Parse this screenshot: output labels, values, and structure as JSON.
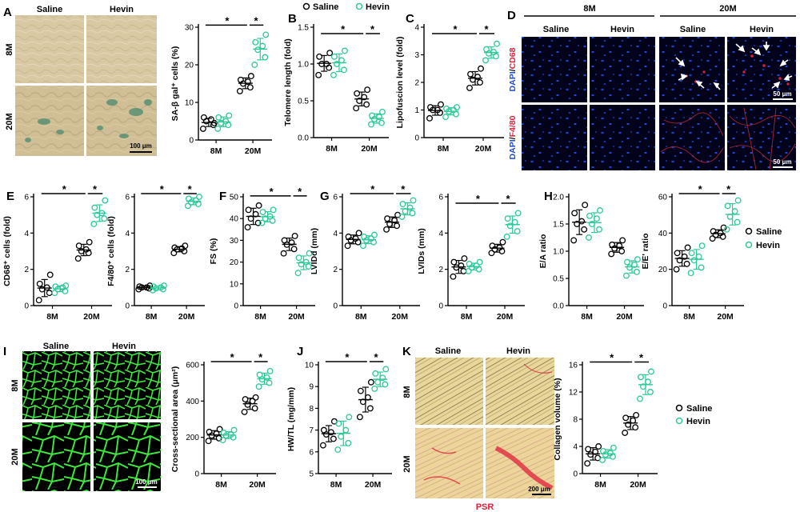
{
  "colors": {
    "saline": "#000000",
    "hevin": "#2cc99a",
    "dapi": "#1a4bd6",
    "cd68": "#e0203a",
    "psr": "#e0203a",
    "muscle": "#33dd33"
  },
  "groups": [
    "Saline",
    "Hevin"
  ],
  "ages": [
    "8M",
    "20M"
  ],
  "panel_A": {
    "letter": "A",
    "col_saline": "Saline",
    "col_hevin": "Hevin",
    "row_8m": "8M",
    "row_20m": "20M",
    "scale_bar": "100 μm"
  },
  "panel_D": {
    "letter": "D",
    "age_8m": "8M",
    "age_20m": "20M",
    "col_saline_8m": "Saline",
    "col_hevin_8m": "Hevin",
    "col_saline_20m": "Saline",
    "col_hevin_20m": "Hevin",
    "row1_label_dapi": "DAPI",
    "row1_label_sep": "/",
    "row1_label_marker": "CD68",
    "row2_label_dapi": "DAPI",
    "row2_label_sep": "/",
    "row2_label_marker": "F4/80",
    "scale_bar_1": "50 μm",
    "scale_bar_2": "50 μm"
  },
  "panel_I": {
    "letter": "I",
    "col_saline": "Saline",
    "col_hevin": "Hevin",
    "row_8m": "8M",
    "row_20m": "20M",
    "scale_bar": "100 μm"
  },
  "panel_K": {
    "letter": "K",
    "col_saline": "Saline",
    "col_hevin": "Hevin",
    "row_8m": "8M",
    "row_20m": "20M",
    "scale_bar": "200 μm",
    "stain": "PSR"
  },
  "legends": {
    "top": {
      "saline": "Saline",
      "hevin": "Hevin"
    },
    "H": {
      "saline": "Saline",
      "hevin": "Hevin"
    },
    "K": {
      "saline": "Saline",
      "hevin": "Hevin"
    }
  },
  "significance_marker": "*",
  "chart_data": [
    {
      "id": "A_sa_bgal",
      "panel": "A",
      "type": "scatter",
      "ylabel": "SA-β gal⁺ cells (%)",
      "ylim": [
        0,
        30
      ],
      "yticks": [
        0,
        10,
        20,
        30
      ],
      "categories": [
        "8M",
        "20M"
      ],
      "series": [
        {
          "name": "Saline",
          "values": [
            [
              3,
              4,
              5,
              5.5,
              6,
              4.5
            ],
            [
              13,
              14,
              15,
              15.5,
              16,
              17
            ]
          ]
        },
        {
          "name": "Hevin",
          "values": [
            [
              3,
              4,
              4.5,
              5,
              6,
              6.5
            ],
            [
              20,
              22,
              24,
              25,
              26,
              28
            ]
          ]
        }
      ],
      "significance": [
        "8M-Saline vs 20M-Saline",
        "20M-Saline vs 20M-Hevin"
      ]
    },
    {
      "id": "B_telomere",
      "panel": "B",
      "letter": "B",
      "type": "scatter",
      "ylabel": "Telomere length (fold)",
      "ylim": [
        0,
        1.5
      ],
      "yticks": [
        0.0,
        0.5,
        1.0,
        1.5
      ],
      "categories": [
        "8M",
        "20M"
      ],
      "series": [
        {
          "name": "Saline",
          "values": [
            [
              0.85,
              0.95,
              1.0,
              1.0,
              1.1,
              1.15
            ],
            [
              0.4,
              0.45,
              0.5,
              0.55,
              0.6,
              0.65
            ]
          ]
        },
        {
          "name": "Hevin",
          "values": [
            [
              0.85,
              0.92,
              1.0,
              1.05,
              1.1,
              1.18
            ],
            [
              0.18,
              0.2,
              0.25,
              0.28,
              0.3,
              0.35
            ]
          ]
        }
      ],
      "significance": [
        "8M-Saline vs 20M-Saline",
        "20M-Saline vs 20M-Hevin"
      ]
    },
    {
      "id": "C_lipofuscin",
      "panel": "C",
      "letter": "C",
      "type": "scatter",
      "ylabel": "Lipofuscion level (fold)",
      "ylim": [
        0,
        4
      ],
      "yticks": [
        0,
        1,
        2,
        3,
        4
      ],
      "categories": [
        "8M",
        "20M"
      ],
      "series": [
        {
          "name": "Saline",
          "values": [
            [
              0.7,
              0.9,
              1.0,
              1.0,
              1.1,
              1.2
            ],
            [
              1.8,
              2.0,
              2.1,
              2.2,
              2.3,
              2.5
            ]
          ]
        },
        {
          "name": "Hevin",
          "values": [
            [
              0.75,
              0.85,
              0.95,
              1.0,
              1.05,
              1.1
            ],
            [
              2.8,
              2.95,
              3.05,
              3.1,
              3.2,
              3.4
            ]
          ]
        }
      ],
      "significance": [
        "8M-Saline vs 20M-Saline",
        "20M-Saline vs 20M-Hevin"
      ]
    },
    {
      "id": "E_cd68",
      "panel": "E",
      "letter": "E",
      "type": "scatter",
      "ylabel": "CD68⁺ cells (fold)",
      "ylim": [
        0,
        6
      ],
      "yticks": [
        0,
        2,
        4,
        6
      ],
      "categories": [
        "8M",
        "20M"
      ],
      "series": [
        {
          "name": "Saline",
          "values": [
            [
              0.3,
              0.7,
              0.9,
              1.0,
              1.2,
              1.7
            ],
            [
              2.6,
              2.9,
              3.0,
              3.1,
              3.3,
              3.5
            ]
          ]
        },
        {
          "name": "Hevin",
          "values": [
            [
              0.7,
              0.8,
              0.9,
              1.0,
              1.05,
              1.1
            ],
            [
              4.5,
              4.8,
              5.0,
              5.1,
              5.4,
              5.8
            ]
          ]
        }
      ],
      "significance": [
        "8M-Saline vs 20M-Saline",
        "20M-Saline vs 20M-Hevin"
      ]
    },
    {
      "id": "E_f480",
      "panel": "E",
      "type": "scatter",
      "ylabel": "F4/80⁺ cells (fold)",
      "ylim": [
        0,
        6
      ],
      "yticks": [
        0,
        2,
        4,
        6
      ],
      "categories": [
        "8M",
        "20M"
      ],
      "series": [
        {
          "name": "Saline",
          "values": [
            [
              0.9,
              0.95,
              1.0,
              1.0,
              1.05,
              1.1
            ],
            [
              2.9,
              3.0,
              3.1,
              3.15,
              3.2,
              3.3
            ]
          ]
        },
        {
          "name": "Hevin",
          "values": [
            [
              0.85,
              0.9,
              0.95,
              1.0,
              1.05,
              1.1
            ],
            [
              5.5,
              5.6,
              5.7,
              5.8,
              5.9,
              6.0
            ]
          ]
        }
      ],
      "significance": [
        "8M-Saline vs 20M-Saline",
        "20M-Saline vs 20M-Hevin"
      ]
    },
    {
      "id": "F_fs",
      "panel": "F",
      "letter": "F",
      "type": "scatter",
      "ylabel": "FS (%)",
      "ylim": [
        0,
        50
      ],
      "yticks": [
        0,
        10,
        20,
        30,
        40,
        50
      ],
      "categories": [
        "8M",
        "20M"
      ],
      "series": [
        {
          "name": "Saline",
          "values": [
            [
              36,
              38,
              40,
              42,
              44,
              46
            ],
            [
              24,
              26,
              28,
              29,
              30,
              32
            ]
          ]
        },
        {
          "name": "Hevin",
          "values": [
            [
              38,
              39,
              40,
              41,
              43,
              44
            ],
            [
              15,
              18,
              19,
              20,
              22,
              24
            ]
          ]
        }
      ],
      "significance": [
        "8M-Saline vs 20M-Saline",
        "20M-Saline vs 20M-Hevin"
      ]
    },
    {
      "id": "G_lvidd",
      "panel": "G",
      "letter": "G",
      "type": "scatter",
      "ylabel": "LVIDd (mm)",
      "ylim": [
        0,
        6
      ],
      "yticks": [
        0,
        2,
        4,
        6
      ],
      "categories": [
        "8M",
        "20M"
      ],
      "series": [
        {
          "name": "Saline",
          "values": [
            [
              3.3,
              3.5,
              3.6,
              3.7,
              3.8,
              4.0
            ],
            [
              4.2,
              4.4,
              4.5,
              4.7,
              4.8,
              5.0
            ]
          ]
        },
        {
          "name": "Hevin",
          "values": [
            [
              3.3,
              3.5,
              3.6,
              3.7,
              3.8,
              3.9
            ],
            [
              4.9,
              5.1,
              5.2,
              5.4,
              5.6,
              5.8
            ]
          ]
        }
      ],
      "significance": [
        "8M-Saline vs 20M-Saline",
        "20M-Saline vs 20M-Hevin"
      ]
    },
    {
      "id": "G_lvids",
      "panel": "G",
      "type": "scatter",
      "ylabel": "LVIDs (mm)",
      "ylim": [
        0,
        6
      ],
      "yticks": [
        0,
        2,
        4,
        6
      ],
      "categories": [
        "8M",
        "20M"
      ],
      "series": [
        {
          "name": "Saline",
          "values": [
            [
              1.6,
              1.9,
              2.1,
              2.2,
              2.4,
              2.6
            ],
            [
              2.9,
              3.0,
              3.1,
              3.2,
              3.3,
              3.5
            ]
          ]
        },
        {
          "name": "Hevin",
          "values": [
            [
              1.9,
              2.0,
              2.1,
              2.2,
              2.3,
              2.4
            ],
            [
              3.8,
              4.1,
              4.4,
              4.6,
              4.8,
              5.1
            ]
          ]
        }
      ],
      "significance": [
        "8M-Saline vs 20M-Saline",
        "20M-Saline vs 20M-Hevin"
      ]
    },
    {
      "id": "H_ea",
      "panel": "H",
      "letter": "H",
      "type": "scatter",
      "ylabel": "E/A ratio",
      "ylim": [
        0,
        2.0
      ],
      "yticks": [
        0.0,
        0.5,
        1.0,
        1.5,
        2.0
      ],
      "categories": [
        "8M",
        "20M"
      ],
      "series": [
        {
          "name": "Saline",
          "values": [
            [
              1.2,
              1.4,
              1.5,
              1.55,
              1.7,
              1.85
            ],
            [
              0.95,
              1.0,
              1.05,
              1.1,
              1.12,
              1.2
            ]
          ]
        },
        {
          "name": "Hevin",
          "values": [
            [
              1.25,
              1.4,
              1.5,
              1.6,
              1.65,
              1.75
            ],
            [
              0.55,
              0.62,
              0.7,
              0.75,
              0.8,
              0.85
            ]
          ]
        }
      ],
      "significance": []
    },
    {
      "id": "H_ee",
      "panel": "H",
      "type": "scatter",
      "ylabel": "E/E' ratio",
      "ylim": [
        0,
        60
      ],
      "yticks": [
        0,
        20,
        40,
        60
      ],
      "categories": [
        "8M",
        "20M"
      ],
      "series": [
        {
          "name": "Saline",
          "values": [
            [
              20,
              23,
              25,
              27,
              29,
              32
            ],
            [
              37,
              38,
              39,
              40,
              41,
              43
            ]
          ]
        },
        {
          "name": "Hevin",
          "values": [
            [
              18,
              21,
              25,
              27,
              29,
              33
            ],
            [
              42,
              46,
              49,
              52,
              55,
              58
            ]
          ]
        }
      ],
      "significance": [
        "8M-Saline vs 20M-Saline",
        "20M-Saline vs 20M-Hevin"
      ]
    },
    {
      "id": "I_csa",
      "panel": "I",
      "type": "scatter",
      "ylabel": "Cross-sectional area (μm²)",
      "ylim": [
        0,
        600
      ],
      "yticks": [
        0,
        200,
        400,
        600
      ],
      "categories": [
        "8M",
        "20M"
      ],
      "series": [
        {
          "name": "Saline",
          "values": [
            [
              180,
              195,
              210,
              220,
              230,
              245
            ],
            [
              340,
              360,
              380,
              400,
              410,
              420
            ]
          ]
        },
        {
          "name": "Hevin",
          "values": [
            [
              185,
              200,
              210,
              215,
              225,
              240
            ],
            [
              480,
              500,
              520,
              530,
              545,
              565
            ]
          ]
        }
      ],
      "significance": [
        "8M-Saline vs 20M-Saline",
        "20M-Saline vs 20M-Hevin"
      ]
    },
    {
      "id": "J_hwtl",
      "panel": "J",
      "letter": "J",
      "type": "scatter",
      "ylabel": "HW/TL (mg/mm)",
      "ylim": [
        5,
        10
      ],
      "yticks": [
        5,
        6,
        7,
        8,
        9,
        10
      ],
      "categories": [
        "8M",
        "20M"
      ],
      "series": [
        {
          "name": "Saline",
          "values": [
            [
              6.3,
              6.6,
              6.8,
              6.9,
              7.0,
              7.4
            ],
            [
              7.6,
              8.0,
              8.3,
              8.5,
              8.8,
              9.2
            ]
          ]
        },
        {
          "name": "Hevin",
          "values": [
            [
              6.1,
              6.4,
              6.7,
              7.0,
              7.3,
              7.6
            ],
            [
              8.9,
              9.1,
              9.2,
              9.4,
              9.6,
              9.8
            ]
          ]
        }
      ],
      "significance": [
        "8M-Saline vs 20M-Saline",
        "20M-Saline vs 20M-Hevin"
      ]
    },
    {
      "id": "K_collagen",
      "panel": "K",
      "type": "scatter",
      "ylabel": "Collagen volume (%)",
      "ylim": [
        0,
        16
      ],
      "yticks": [
        0,
        4,
        8,
        12,
        16
      ],
      "categories": [
        "8M",
        "20M"
      ],
      "series": [
        {
          "name": "Saline",
          "values": [
            [
              1.5,
              2.3,
              2.8,
              3.2,
              3.6,
              4.0
            ],
            [
              6.0,
              6.8,
              7.2,
              7.8,
              8.2,
              8.6
            ]
          ]
        },
        {
          "name": "Hevin",
          "values": [
            [
              2.0,
              2.5,
              2.8,
              3.0,
              3.3,
              3.8
            ],
            [
              11.0,
              12.0,
              12.8,
              13.5,
              14.2,
              15.0
            ]
          ]
        }
      ],
      "significance": [
        "8M-Saline vs 20M-Saline",
        "20M-Saline vs 20M-Hevin"
      ]
    }
  ]
}
